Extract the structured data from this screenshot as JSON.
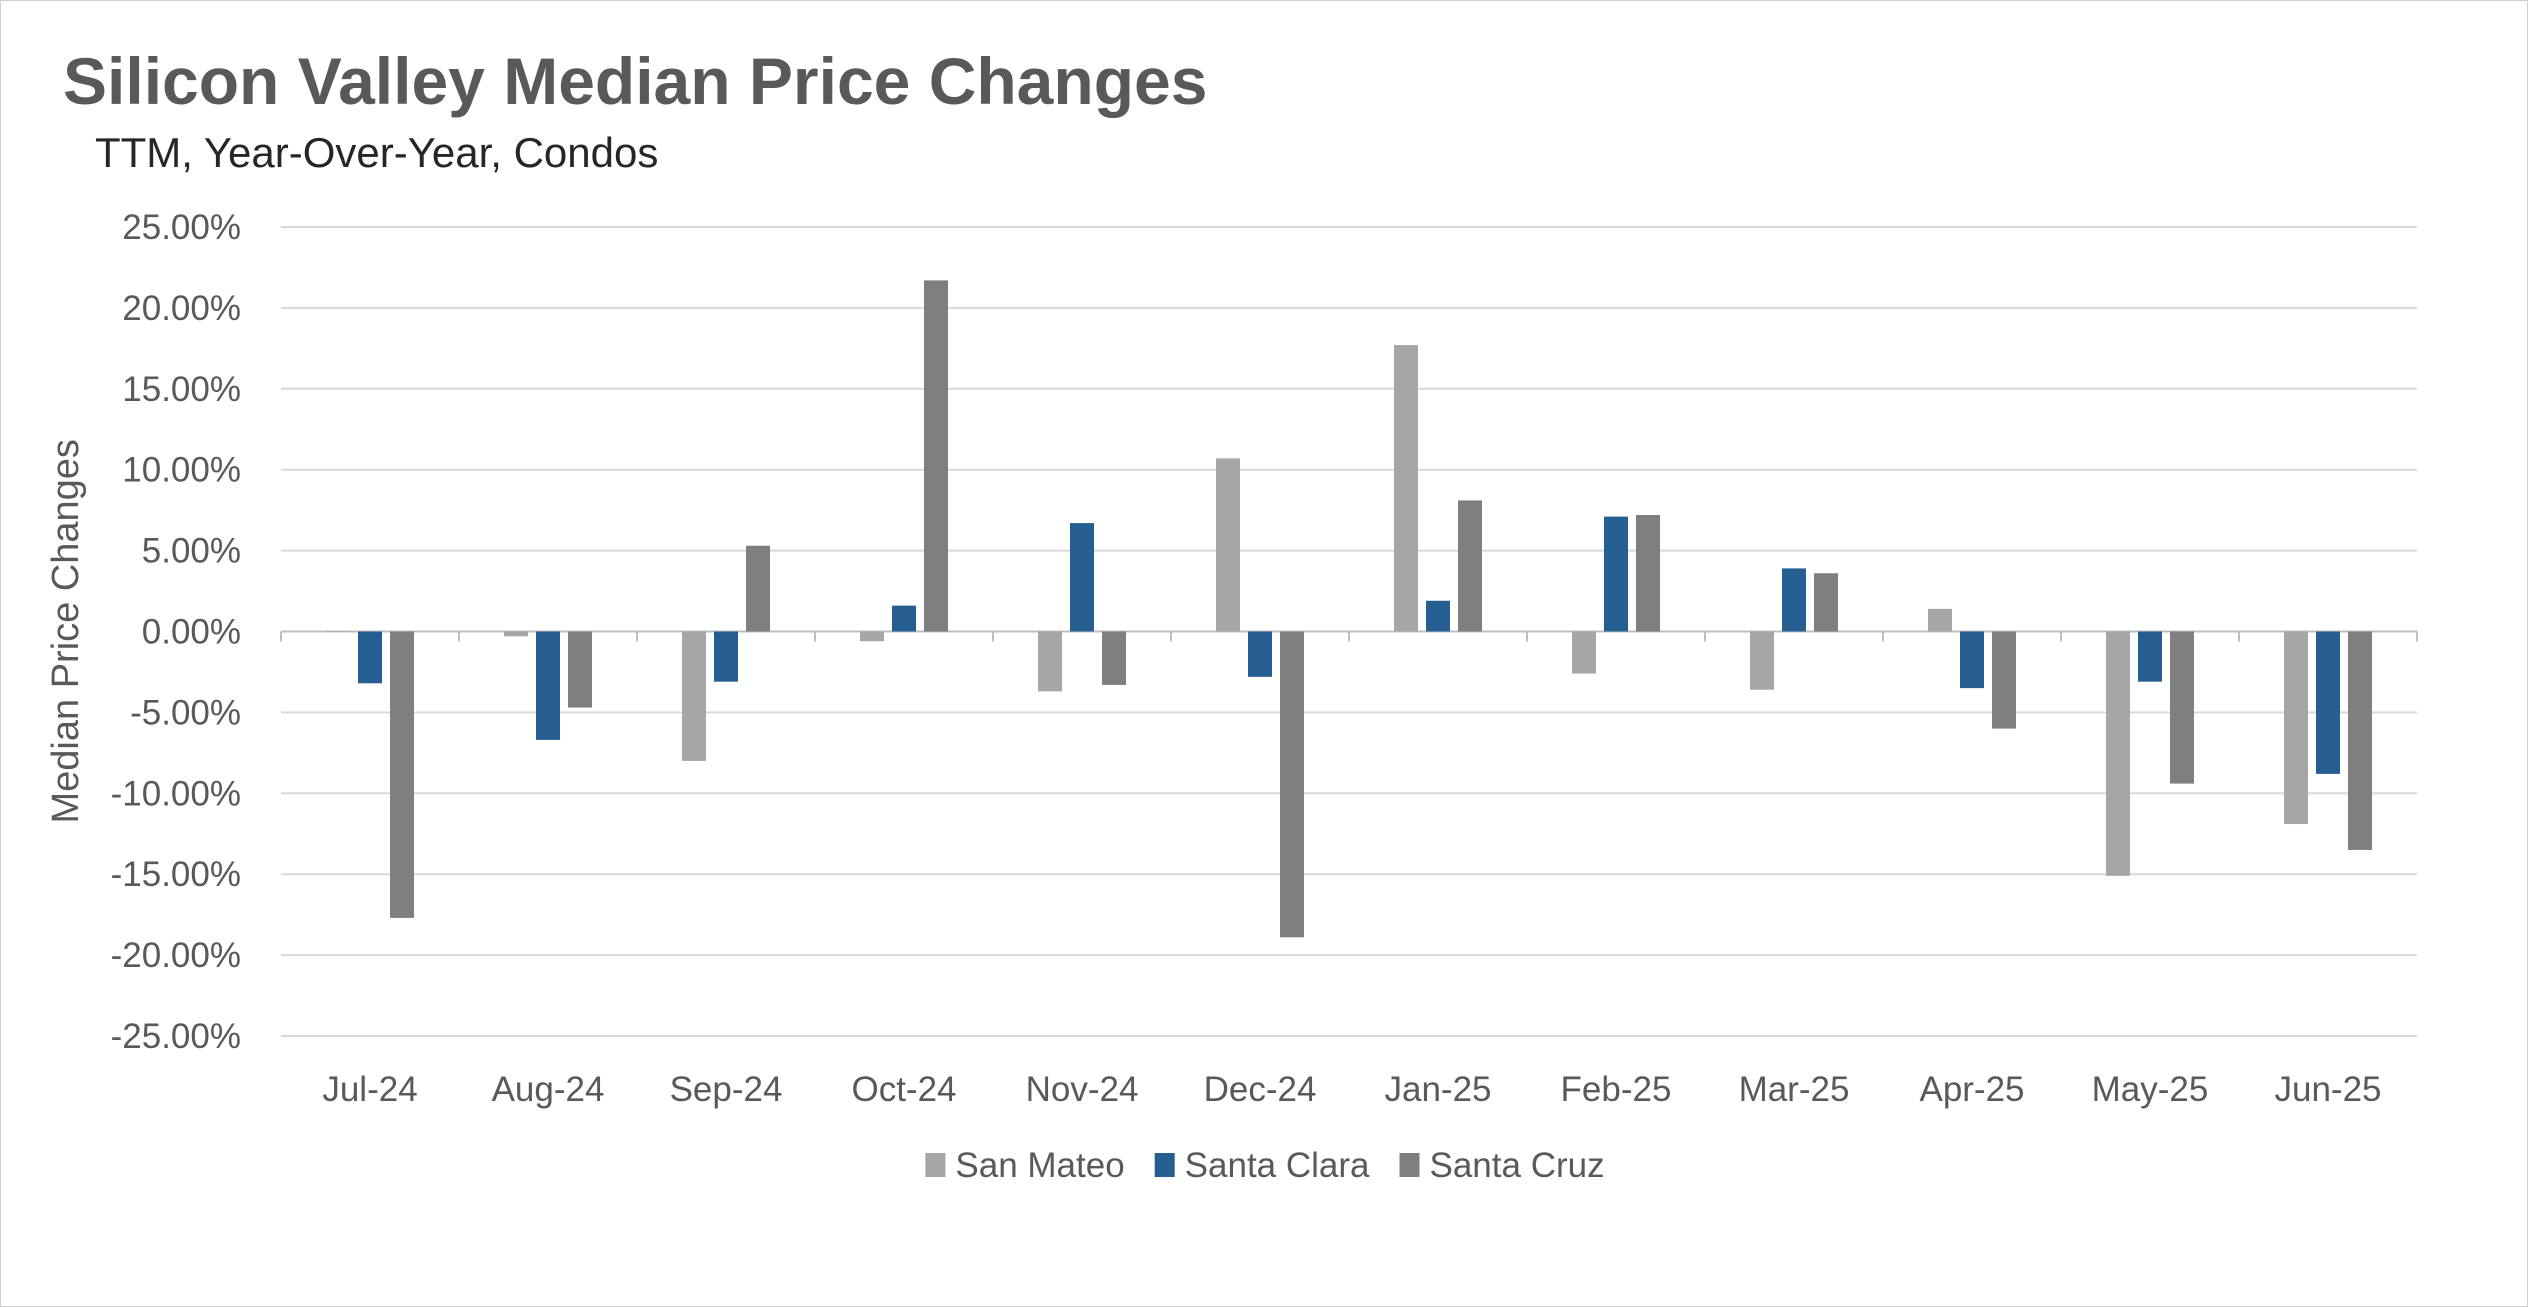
{
  "chart_data": {
    "type": "bar",
    "title": "Silicon Valley Median Price Changes",
    "subtitle": "TTM, Year-Over-Year,  Condos",
    "xlabel": "",
    "ylabel": "Median Price Changes",
    "ylim": [
      -25,
      25
    ],
    "ytick_step": 5,
    "ytick_labels": [
      "25.00%",
      "20.00%",
      "15.00%",
      "10.00%",
      "5.00%",
      "0.00%",
      "-5.00%",
      "-10.00%",
      "-15.00%",
      "-20.00%",
      "-25.00%"
    ],
    "grid": true,
    "legend_position": "bottom",
    "categories": [
      "Jul-24",
      "Aug-24",
      "Sep-24",
      "Oct-24",
      "Nov-24",
      "Dec-24",
      "Jan-25",
      "Feb-25",
      "Mar-25",
      "Apr-25",
      "May-25",
      "Jun-25"
    ],
    "series": [
      {
        "name": "San Mateo",
        "color": "#A6A6A6",
        "values": [
          0.0,
          -0.3,
          -8.0,
          -0.6,
          -3.7,
          10.7,
          17.7,
          -2.6,
          -3.6,
          1.4,
          -15.1,
          -11.9
        ]
      },
      {
        "name": "Santa Clara",
        "color": "#255E91",
        "values": [
          -3.2,
          -6.7,
          -3.1,
          1.6,
          6.7,
          -2.8,
          1.9,
          7.1,
          3.9,
          -3.5,
          -3.1,
          -8.8
        ]
      },
      {
        "name": "Santa Cruz",
        "color": "#7F7F7F",
        "values": [
          -17.7,
          -4.7,
          5.3,
          21.7,
          -3.3,
          -18.9,
          8.1,
          7.2,
          3.6,
          -6.0,
          -9.4,
          -13.5
        ]
      }
    ]
  }
}
